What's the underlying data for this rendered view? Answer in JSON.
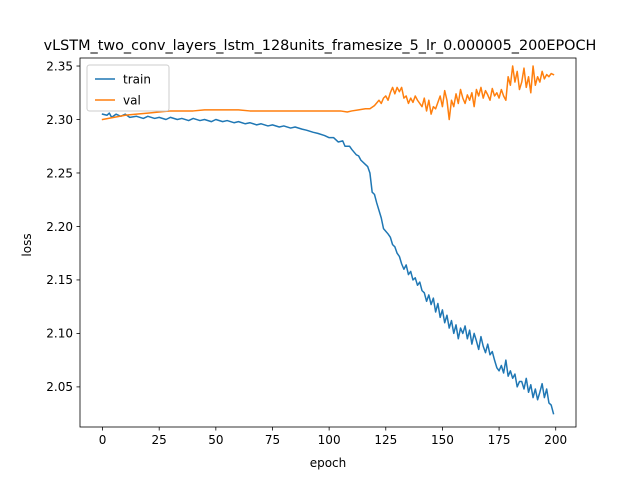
{
  "chart_data": {
    "type": "line",
    "title": "vLSTM_two_conv_layers_lstm_128units_framesize_5_lr_0.000005_200EPOCH",
    "xlabel": "epoch",
    "ylabel": "loss",
    "xlim": [
      -9.95,
      208.95
    ],
    "ylim": [
      2.0125,
      2.3575
    ],
    "xticks": [
      0,
      25,
      50,
      75,
      100,
      125,
      150,
      175,
      200
    ],
    "yticks": [
      2.05,
      2.1,
      2.15,
      2.2,
      2.25,
      2.3,
      2.35
    ],
    "legend_placement": "upper-left",
    "grid": false,
    "series": [
      {
        "name": "train",
        "color": "#1f77b4",
        "points": [
          [
            0,
            2.305
          ],
          [
            2,
            2.304
          ],
          [
            3,
            2.306
          ],
          [
            4,
            2.302
          ],
          [
            6,
            2.305
          ],
          [
            8,
            2.303
          ],
          [
            10,
            2.305
          ],
          [
            12,
            2.302
          ],
          [
            15,
            2.303
          ],
          [
            18,
            2.301
          ],
          [
            20,
            2.303
          ],
          [
            23,
            2.301
          ],
          [
            25,
            2.302
          ],
          [
            28,
            2.3
          ],
          [
            30,
            2.302
          ],
          [
            33,
            2.3
          ],
          [
            35,
            2.301
          ],
          [
            38,
            2.299
          ],
          [
            40,
            2.301
          ],
          [
            43,
            2.299
          ],
          [
            45,
            2.3
          ],
          [
            48,
            2.298
          ],
          [
            50,
            2.3
          ],
          [
            53,
            2.298
          ],
          [
            55,
            2.299
          ],
          [
            58,
            2.297
          ],
          [
            60,
            2.298
          ],
          [
            63,
            2.296
          ],
          [
            65,
            2.297
          ],
          [
            68,
            2.295
          ],
          [
            70,
            2.296
          ],
          [
            73,
            2.294
          ],
          [
            75,
            2.295
          ],
          [
            78,
            2.293
          ],
          [
            80,
            2.294
          ],
          [
            83,
            2.292
          ],
          [
            85,
            2.293
          ],
          [
            88,
            2.291
          ],
          [
            90,
            2.29
          ],
          [
            93,
            2.288
          ],
          [
            95,
            2.287
          ],
          [
            98,
            2.285
          ],
          [
            100,
            2.283
          ],
          [
            102,
            2.283
          ],
          [
            104,
            2.279
          ],
          [
            106,
            2.28
          ],
          [
            107,
            2.275
          ],
          [
            109,
            2.275
          ],
          [
            110,
            2.272
          ],
          [
            112,
            2.267
          ],
          [
            113,
            2.266
          ],
          [
            114,
            2.262
          ],
          [
            116,
            2.258
          ],
          [
            117,
            2.256
          ],
          [
            118,
            2.25
          ],
          [
            119,
            2.232
          ],
          [
            120,
            2.23
          ],
          [
            121,
            2.222
          ],
          [
            123,
            2.208
          ],
          [
            124,
            2.198
          ],
          [
            126,
            2.193
          ],
          [
            127,
            2.19
          ],
          [
            128,
            2.183
          ],
          [
            129,
            2.181
          ],
          [
            130,
            2.175
          ],
          [
            131,
            2.172
          ],
          [
            132,
            2.165
          ],
          [
            133,
            2.16
          ],
          [
            134,
            2.164
          ],
          [
            135,
            2.155
          ],
          [
            136,
            2.158
          ],
          [
            137,
            2.15
          ],
          [
            138,
            2.152
          ],
          [
            139,
            2.145
          ],
          [
            140,
            2.148
          ],
          [
            141,
            2.14
          ],
          [
            142,
            2.138
          ],
          [
            143,
            2.13
          ],
          [
            144,
            2.136
          ],
          [
            145,
            2.127
          ],
          [
            146,
            2.133
          ],
          [
            147,
            2.12
          ],
          [
            148,
            2.128
          ],
          [
            149,
            2.115
          ],
          [
            150,
            2.122
          ],
          [
            151,
            2.11
          ],
          [
            152,
            2.117
          ],
          [
            153,
            2.105
          ],
          [
            154,
            2.112
          ],
          [
            155,
            2.1
          ],
          [
            156,
            2.108
          ],
          [
            157,
            2.095
          ],
          [
            158,
            2.105
          ],
          [
            159,
            2.1
          ],
          [
            160,
            2.107
          ],
          [
            161,
            2.095
          ],
          [
            162,
            2.103
          ],
          [
            163,
            2.09
          ],
          [
            164,
            2.1
          ],
          [
            165,
            2.093
          ],
          [
            166,
            2.085
          ],
          [
            167,
            2.097
          ],
          [
            168,
            2.088
          ],
          [
            169,
            2.082
          ],
          [
            170,
            2.09
          ],
          [
            171,
            2.08
          ],
          [
            172,
            2.083
          ],
          [
            173,
            2.075
          ],
          [
            174,
            2.068
          ],
          [
            175,
            2.065
          ],
          [
            176,
            2.07
          ],
          [
            177,
            2.063
          ],
          [
            178,
            2.075
          ],
          [
            179,
            2.06
          ],
          [
            180,
            2.065
          ],
          [
            181,
            2.058
          ],
          [
            182,
            2.062
          ],
          [
            183,
            2.05
          ],
          [
            184,
            2.055
          ],
          [
            185,
            2.055
          ],
          [
            186,
            2.048
          ],
          [
            187,
            2.058
          ],
          [
            188,
            2.045
          ],
          [
            189,
            2.052
          ],
          [
            190,
            2.04
          ],
          [
            191,
            2.048
          ],
          [
            192,
            2.038
          ],
          [
            193,
            2.045
          ],
          [
            194,
            2.053
          ],
          [
            195,
            2.04
          ],
          [
            196,
            2.048
          ],
          [
            197,
            2.035
          ],
          [
            198,
            2.033
          ],
          [
            199,
            2.025
          ]
        ]
      },
      {
        "name": "val",
        "color": "#ff7f0e",
        "points": [
          [
            0,
            2.3
          ],
          [
            5,
            2.302
          ],
          [
            10,
            2.304
          ],
          [
            15,
            2.305
          ],
          [
            20,
            2.306
          ],
          [
            25,
            2.307
          ],
          [
            30,
            2.308
          ],
          [
            35,
            2.308
          ],
          [
            40,
            2.308
          ],
          [
            45,
            2.309
          ],
          [
            50,
            2.309
          ],
          [
            55,
            2.309
          ],
          [
            60,
            2.309
          ],
          [
            65,
            2.308
          ],
          [
            70,
            2.308
          ],
          [
            75,
            2.308
          ],
          [
            80,
            2.308
          ],
          [
            85,
            2.308
          ],
          [
            90,
            2.308
          ],
          [
            95,
            2.308
          ],
          [
            100,
            2.308
          ],
          [
            105,
            2.308
          ],
          [
            108,
            2.307
          ],
          [
            110,
            2.308
          ],
          [
            113,
            2.309
          ],
          [
            116,
            2.31
          ],
          [
            118,
            2.31
          ],
          [
            120,
            2.313
          ],
          [
            122,
            2.318
          ],
          [
            123,
            2.315
          ],
          [
            124,
            2.32
          ],
          [
            125,
            2.322
          ],
          [
            126,
            2.318
          ],
          [
            127,
            2.325
          ],
          [
            128,
            2.33
          ],
          [
            129,
            2.324
          ],
          [
            130,
            2.33
          ],
          [
            131,
            2.326
          ],
          [
            132,
            2.33
          ],
          [
            133,
            2.32
          ],
          [
            134,
            2.322
          ],
          [
            135,
            2.315
          ],
          [
            136,
            2.32
          ],
          [
            137,
            2.316
          ],
          [
            138,
            2.322
          ],
          [
            139,
            2.318
          ],
          [
            140,
            2.315
          ],
          [
            141,
            2.312
          ],
          [
            142,
            2.32
          ],
          [
            143,
            2.308
          ],
          [
            144,
            2.318
          ],
          [
            145,
            2.305
          ],
          [
            146,
            2.312
          ],
          [
            147,
            2.31
          ],
          [
            148,
            2.316
          ],
          [
            149,
            2.322
          ],
          [
            150,
            2.312
          ],
          [
            151,
            2.327
          ],
          [
            152,
            2.318
          ],
          [
            153,
            2.3
          ],
          [
            154,
            2.318
          ],
          [
            155,
            2.312
          ],
          [
            156,
            2.324
          ],
          [
            157,
            2.315
          ],
          [
            158,
            2.328
          ],
          [
            159,
            2.32
          ],
          [
            160,
            2.315
          ],
          [
            161,
            2.323
          ],
          [
            162,
            2.318
          ],
          [
            163,
            2.325
          ],
          [
            164,
            2.312
          ],
          [
            165,
            2.328
          ],
          [
            166,
            2.322
          ],
          [
            167,
            2.33
          ],
          [
            168,
            2.32
          ],
          [
            169,
            2.327
          ],
          [
            170,
            2.323
          ],
          [
            171,
            2.318
          ],
          [
            172,
            2.329
          ],
          [
            173,
            2.322
          ],
          [
            174,
            2.325
          ],
          [
            175,
            2.32
          ],
          [
            176,
            2.328
          ],
          [
            177,
            2.322
          ],
          [
            178,
            2.318
          ],
          [
            179,
            2.34
          ],
          [
            180,
            2.332
          ],
          [
            181,
            2.35
          ],
          [
            182,
            2.335
          ],
          [
            183,
            2.345
          ],
          [
            184,
            2.328
          ],
          [
            185,
            2.335
          ],
          [
            186,
            2.348
          ],
          [
            187,
            2.33
          ],
          [
            188,
            2.34
          ],
          [
            189,
            2.325
          ],
          [
            190,
            2.35
          ],
          [
            191,
            2.332
          ],
          [
            192,
            2.34
          ],
          [
            193,
            2.335
          ],
          [
            194,
            2.345
          ],
          [
            195,
            2.338
          ],
          [
            196,
            2.342
          ],
          [
            197,
            2.34
          ],
          [
            198,
            2.343
          ],
          [
            199,
            2.342
          ]
        ]
      }
    ]
  }
}
